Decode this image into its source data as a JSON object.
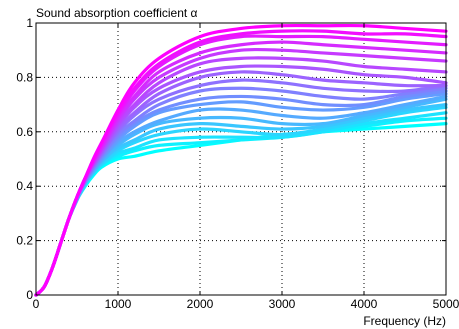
{
  "chart_data": {
    "type": "line",
    "title": "",
    "ylabel": "Sound absorption coefficient α",
    "xlabel": "Frequency (Hz)",
    "xlim": [
      0,
      5000
    ],
    "ylim": [
      0,
      1
    ],
    "x_ticks": [
      0,
      1000,
      2000,
      3000,
      4000,
      5000
    ],
    "y_ticks": [
      0,
      0.2,
      0.4,
      0.6,
      0.8,
      1
    ],
    "x_tick_labels": [
      "0",
      "1000",
      "2000",
      "3000",
      "4000",
      "5000"
    ],
    "y_tick_labels": [
      "0",
      "0.2",
      "0.4",
      "0.6",
      "0.8",
      "1"
    ],
    "grid": true,
    "legend": "none",
    "color_start": "#00ffff",
    "color_end": "#ff00ff",
    "x": [
      0,
      100,
      200,
      300,
      400,
      500,
      600,
      700,
      800,
      1000,
      1200,
      1500,
      2000,
      2500,
      3000,
      3500,
      4000,
      4500,
      5000
    ],
    "series": [
      {
        "values": [
          0,
          0.03,
          0.1,
          0.19,
          0.28,
          0.35,
          0.4,
          0.44,
          0.47,
          0.5,
          0.51,
          0.53,
          0.55,
          0.57,
          0.59,
          0.6,
          0.61,
          0.62,
          0.63
        ]
      },
      {
        "values": [
          0,
          0.03,
          0.1,
          0.19,
          0.28,
          0.35,
          0.41,
          0.45,
          0.48,
          0.51,
          0.53,
          0.55,
          0.56,
          0.57,
          0.58,
          0.6,
          0.62,
          0.64,
          0.65
        ]
      },
      {
        "values": [
          0,
          0.03,
          0.1,
          0.19,
          0.28,
          0.35,
          0.41,
          0.45,
          0.48,
          0.52,
          0.54,
          0.57,
          0.58,
          0.58,
          0.58,
          0.6,
          0.63,
          0.65,
          0.67
        ]
      },
      {
        "values": [
          0,
          0.03,
          0.1,
          0.19,
          0.28,
          0.35,
          0.41,
          0.45,
          0.48,
          0.53,
          0.56,
          0.59,
          0.61,
          0.6,
          0.59,
          0.61,
          0.64,
          0.67,
          0.69
        ]
      },
      {
        "values": [
          0,
          0.03,
          0.1,
          0.19,
          0.28,
          0.35,
          0.41,
          0.45,
          0.49,
          0.54,
          0.57,
          0.61,
          0.63,
          0.62,
          0.61,
          0.62,
          0.65,
          0.68,
          0.7
        ]
      },
      {
        "values": [
          0,
          0.03,
          0.1,
          0.19,
          0.28,
          0.35,
          0.41,
          0.46,
          0.49,
          0.55,
          0.59,
          0.63,
          0.65,
          0.65,
          0.63,
          0.63,
          0.66,
          0.69,
          0.72
        ]
      },
      {
        "values": [
          0,
          0.03,
          0.1,
          0.19,
          0.28,
          0.35,
          0.41,
          0.46,
          0.5,
          0.56,
          0.6,
          0.64,
          0.68,
          0.68,
          0.66,
          0.65,
          0.67,
          0.7,
          0.73
        ]
      },
      {
        "values": [
          0,
          0.03,
          0.1,
          0.19,
          0.28,
          0.36,
          0.42,
          0.46,
          0.5,
          0.57,
          0.62,
          0.67,
          0.7,
          0.71,
          0.69,
          0.68,
          0.69,
          0.72,
          0.74
        ]
      },
      {
        "values": [
          0,
          0.03,
          0.1,
          0.19,
          0.28,
          0.36,
          0.42,
          0.47,
          0.51,
          0.58,
          0.63,
          0.68,
          0.72,
          0.73,
          0.72,
          0.7,
          0.7,
          0.73,
          0.75
        ]
      },
      {
        "values": [
          0,
          0.03,
          0.1,
          0.19,
          0.28,
          0.36,
          0.42,
          0.47,
          0.51,
          0.59,
          0.64,
          0.7,
          0.75,
          0.76,
          0.75,
          0.73,
          0.72,
          0.74,
          0.76
        ]
      },
      {
        "values": [
          0,
          0.03,
          0.1,
          0.19,
          0.28,
          0.36,
          0.42,
          0.47,
          0.52,
          0.6,
          0.66,
          0.72,
          0.77,
          0.79,
          0.78,
          0.76,
          0.75,
          0.75,
          0.77
        ]
      },
      {
        "values": [
          0,
          0.03,
          0.1,
          0.19,
          0.28,
          0.36,
          0.42,
          0.48,
          0.52,
          0.61,
          0.67,
          0.74,
          0.8,
          0.82,
          0.81,
          0.79,
          0.78,
          0.77,
          0.77
        ]
      },
      {
        "values": [
          0,
          0.03,
          0.1,
          0.19,
          0.28,
          0.36,
          0.43,
          0.48,
          0.53,
          0.62,
          0.69,
          0.76,
          0.82,
          0.84,
          0.84,
          0.83,
          0.81,
          0.8,
          0.78
        ]
      },
      {
        "values": [
          0,
          0.03,
          0.1,
          0.19,
          0.28,
          0.36,
          0.43,
          0.48,
          0.53,
          0.63,
          0.7,
          0.78,
          0.85,
          0.87,
          0.87,
          0.86,
          0.84,
          0.83,
          0.82
        ]
      },
      {
        "values": [
          0,
          0.03,
          0.1,
          0.19,
          0.28,
          0.36,
          0.43,
          0.49,
          0.54,
          0.64,
          0.72,
          0.8,
          0.87,
          0.9,
          0.9,
          0.89,
          0.88,
          0.87,
          0.86
        ]
      },
      {
        "values": [
          0,
          0.03,
          0.1,
          0.19,
          0.28,
          0.36,
          0.43,
          0.49,
          0.54,
          0.65,
          0.73,
          0.82,
          0.89,
          0.92,
          0.93,
          0.92,
          0.91,
          0.9,
          0.89
        ]
      },
      {
        "values": [
          0,
          0.03,
          0.1,
          0.19,
          0.28,
          0.36,
          0.43,
          0.49,
          0.55,
          0.66,
          0.75,
          0.84,
          0.92,
          0.95,
          0.95,
          0.95,
          0.94,
          0.93,
          0.92
        ]
      },
      {
        "values": [
          0,
          0.03,
          0.1,
          0.19,
          0.28,
          0.36,
          0.43,
          0.5,
          0.56,
          0.67,
          0.76,
          0.85,
          0.93,
          0.96,
          0.97,
          0.97,
          0.96,
          0.96,
          0.95
        ]
      },
      {
        "values": [
          0,
          0.03,
          0.1,
          0.19,
          0.28,
          0.36,
          0.43,
          0.5,
          0.56,
          0.68,
          0.78,
          0.87,
          0.95,
          0.98,
          0.99,
          0.99,
          0.99,
          0.98,
          0.97
        ]
      }
    ]
  }
}
